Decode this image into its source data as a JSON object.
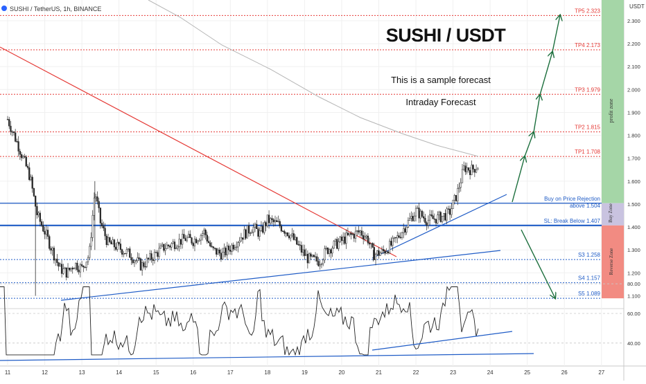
{
  "header": {
    "symbol_title": "SUSHI / TetherUS, 1h, BINANCE",
    "currency": "USDT"
  },
  "annotations": {
    "pair_title": "SUSHI / USDT",
    "sample_note": "This is a sample forecast",
    "forecast_type": "Intraday Forecast",
    "profit_zone": "profit zone",
    "buy_zone": "Buy Zone",
    "reverse_zone": "Reverse Zone",
    "buy_label_1": "Buy on Price Rejection",
    "buy_label_2": "above 1.504"
  },
  "colors": {
    "target_red": "#e53935",
    "support_blue": "#1e5bc6",
    "arrow_green": "#1b6e3c",
    "candle_up": "#2a2a2a",
    "profit_zone": "#a5d6a7",
    "buy_zone": "#c9c3e0",
    "reverse_zone": "#f28b82",
    "ma_gray": "#b5b5b5",
    "trend_red": "#e53935"
  },
  "chart_data": {
    "type": "candlestick",
    "timeframe": "1h",
    "exchange": "BINANCE",
    "x_ticks": [
      "11",
      "12",
      "13",
      "14",
      "15",
      "16",
      "17",
      "18",
      "19",
      "20",
      "21",
      "22",
      "23",
      "24",
      "25",
      "26",
      "27"
    ],
    "y_ticks": [
      "1.100",
      "1.200",
      "1.300",
      "1.400",
      "1.500",
      "1.600",
      "1.700",
      "1.800",
      "1.900",
      "2.000",
      "2.100",
      "2.200",
      "2.300"
    ],
    "ylim": [
      1.08,
      2.36
    ],
    "levels": [
      {
        "label": "TP5",
        "value": "2.323",
        "kind": "target"
      },
      {
        "label": "TP4",
        "value": "2.173",
        "kind": "target"
      },
      {
        "label": "TP3",
        "value": "1.979",
        "kind": "target"
      },
      {
        "label": "TP2",
        "value": "1.815",
        "kind": "target"
      },
      {
        "label": "TP1",
        "value": "1.708",
        "kind": "target"
      },
      {
        "label": "",
        "value": "1.504",
        "kind": "buy"
      },
      {
        "label": "SL: Break Below",
        "value": "1.407",
        "kind": "stop"
      },
      {
        "label": "S3",
        "value": "1.258",
        "kind": "support"
      },
      {
        "label": "S4",
        "value": "1.157",
        "kind": "support"
      },
      {
        "label": "S5",
        "value": "1.089",
        "kind": "support"
      }
    ],
    "price_path": [
      [
        11.0,
        1.87
      ],
      [
        11.3,
        1.75
      ],
      [
        11.6,
        1.62
      ],
      [
        11.8,
        1.45
      ],
      [
        12.0,
        1.38
      ],
      [
        12.2,
        1.3
      ],
      [
        12.4,
        1.22
      ],
      [
        12.6,
        1.2
      ],
      [
        12.8,
        1.24
      ],
      [
        13.0,
        1.22
      ],
      [
        13.2,
        1.28
      ],
      [
        13.35,
        1.56
      ],
      [
        13.5,
        1.42
      ],
      [
        13.7,
        1.33
      ],
      [
        14.0,
        1.31
      ],
      [
        14.3,
        1.28
      ],
      [
        14.6,
        1.23
      ],
      [
        14.9,
        1.27
      ],
      [
        15.2,
        1.31
      ],
      [
        15.5,
        1.33
      ],
      [
        15.8,
        1.35
      ],
      [
        16.0,
        1.34
      ],
      [
        16.3,
        1.38
      ],
      [
        16.5,
        1.3
      ],
      [
        16.8,
        1.28
      ],
      [
        17.0,
        1.31
      ],
      [
        17.3,
        1.36
      ],
      [
        17.6,
        1.4
      ],
      [
        17.8,
        1.37
      ],
      [
        18.0,
        1.43
      ],
      [
        18.3,
        1.41
      ],
      [
        18.6,
        1.37
      ],
      [
        18.9,
        1.3
      ],
      [
        19.1,
        1.26
      ],
      [
        19.4,
        1.25
      ],
      [
        19.6,
        1.3
      ],
      [
        19.9,
        1.33
      ],
      [
        20.2,
        1.36
      ],
      [
        20.5,
        1.38
      ],
      [
        20.7,
        1.35
      ],
      [
        20.85,
        1.28
      ],
      [
        21.1,
        1.29
      ],
      [
        21.4,
        1.33
      ],
      [
        21.7,
        1.4
      ],
      [
        22.0,
        1.47
      ],
      [
        22.3,
        1.43
      ],
      [
        22.6,
        1.44
      ],
      [
        22.9,
        1.46
      ],
      [
        23.1,
        1.54
      ],
      [
        23.3,
        1.66
      ],
      [
        23.5,
        1.65
      ],
      [
        23.7,
        1.67
      ]
    ],
    "rsi": {
      "y_ticks": [
        "40.00",
        "60.00",
        "80.00"
      ],
      "ylim": [
        25,
        85
      ]
    }
  }
}
